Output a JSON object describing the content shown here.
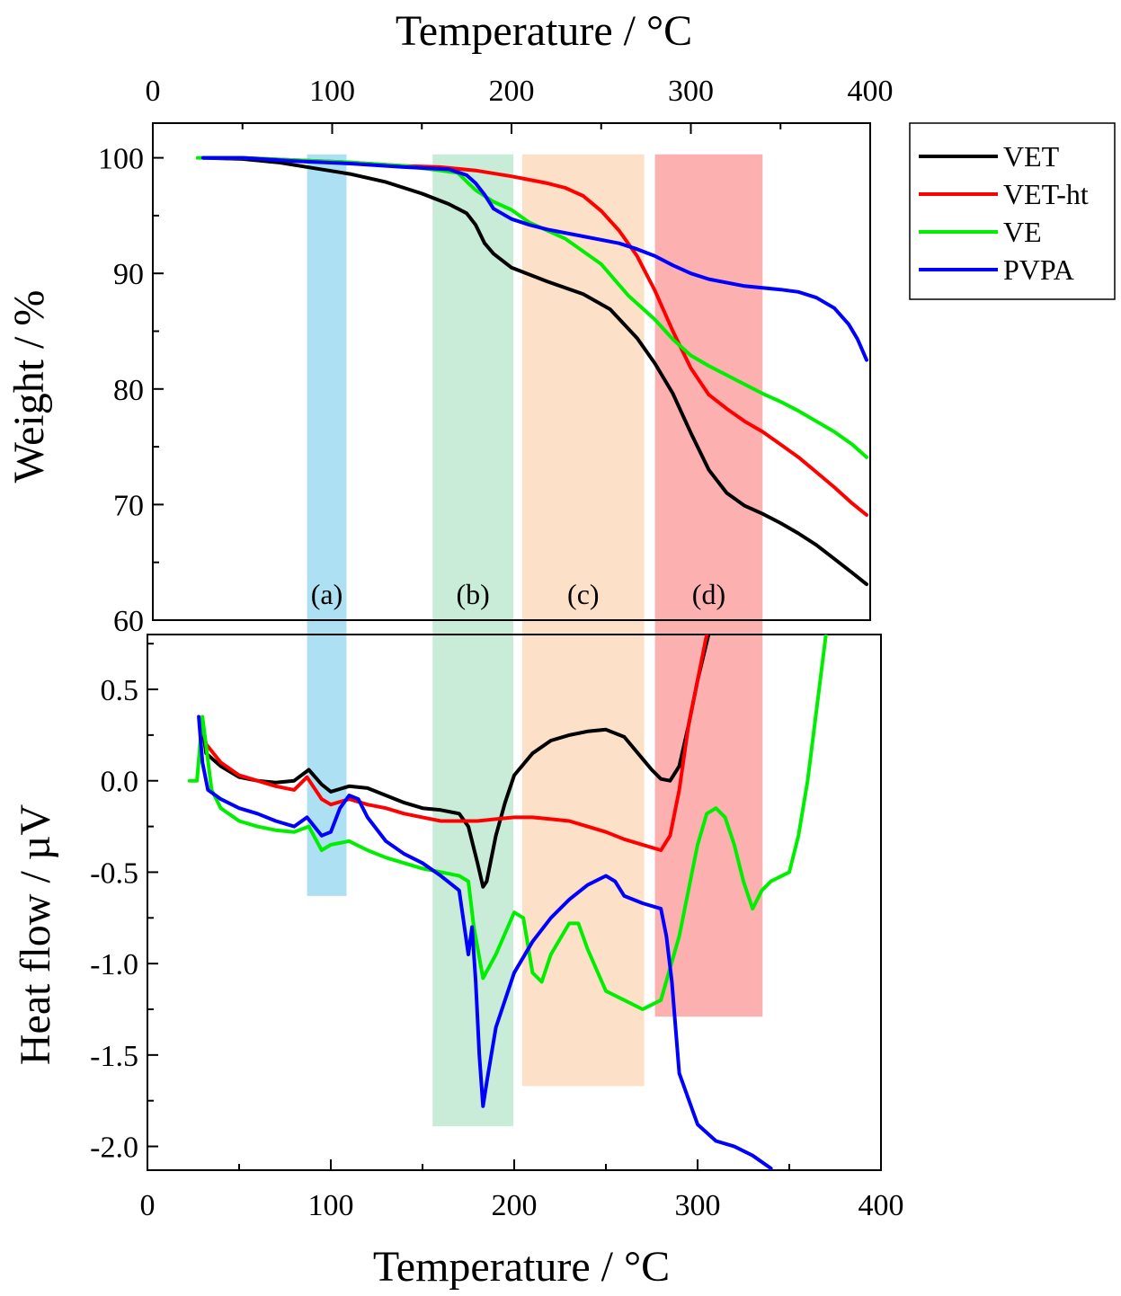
{
  "chart_data": [
    {
      "type": "line",
      "panel": "top",
      "xlabel_top": "Temperature / °C",
      "ylabel": "Weight / %",
      "xlim": [
        0,
        400
      ],
      "ylim": [
        60,
        103
      ],
      "xticks": [
        "0",
        "100",
        "200",
        "300",
        "400"
      ],
      "yticks": [
        "60",
        "70",
        "80",
        "90",
        "100"
      ],
      "grid": false,
      "legend_position": "top-right, outside plot",
      "series": [
        {
          "name": "VET",
          "color": "#000000",
          "x": [
            28,
            50,
            70,
            90,
            110,
            130,
            150,
            165,
            175,
            180,
            185,
            190,
            200,
            220,
            240,
            255,
            270,
            280,
            290,
            300,
            310,
            320,
            330,
            340,
            350,
            360,
            370,
            380,
            390,
            398
          ],
          "y": [
            100,
            99.9,
            99.6,
            99.1,
            98.6,
            97.9,
            96.9,
            96,
            95.2,
            94.2,
            92.6,
            91.7,
            90.5,
            89.3,
            88.2,
            86.9,
            84.4,
            82.2,
            79.6,
            76.2,
            73,
            71,
            69.9,
            69.2,
            68.4,
            67.5,
            66.5,
            65.3,
            64.1,
            63.1
          ]
        },
        {
          "name": "VET-ht",
          "color": "#ff0000",
          "x": [
            28,
            50,
            80,
            110,
            140,
            160,
            180,
            200,
            220,
            230,
            240,
            250,
            260,
            270,
            280,
            290,
            300,
            310,
            320,
            330,
            340,
            350,
            360,
            370,
            380,
            390,
            398
          ],
          "y": [
            100,
            100,
            99.8,
            99.6,
            99.3,
            99.2,
            98.9,
            98.4,
            97.8,
            97.4,
            96.7,
            95.4,
            93.7,
            91.5,
            88.5,
            85,
            81.8,
            79.5,
            78.3,
            77.2,
            76.3,
            75.2,
            74.1,
            72.8,
            71.5,
            70.1,
            69.1
          ]
        },
        {
          "name": "VE",
          "color": "#00ee00",
          "x": [
            25,
            50,
            80,
            110,
            140,
            160,
            170,
            180,
            190,
            200,
            210,
            230,
            250,
            265,
            280,
            290,
            300,
            310,
            320,
            330,
            340,
            350,
            360,
            370,
            380,
            390,
            398
          ],
          "y": [
            100,
            100,
            99.8,
            99.6,
            99.3,
            98.9,
            98.7,
            97.2,
            96.2,
            95.5,
            94.4,
            93,
            90.8,
            88.1,
            86,
            84.3,
            82.9,
            82,
            81.2,
            80.4,
            79.6,
            78.9,
            78.1,
            77.2,
            76.3,
            75.2,
            74.1
          ]
        },
        {
          "name": "PVPA",
          "color": "#0000ff",
          "x": [
            28,
            50,
            80,
            110,
            140,
            165,
            175,
            180,
            185,
            190,
            200,
            210,
            220,
            240,
            260,
            270,
            280,
            290,
            300,
            310,
            330,
            350,
            360,
            370,
            380,
            388,
            393,
            398
          ],
          "y": [
            100,
            100,
            99.7,
            99.5,
            99.2,
            99,
            98.5,
            97.8,
            96.8,
            95.6,
            94.7,
            94.2,
            93.8,
            93.2,
            92.6,
            92.1,
            91.5,
            90.7,
            90,
            89.5,
            88.9,
            88.6,
            88.4,
            87.9,
            87,
            85.6,
            84.3,
            82.5
          ]
        }
      ]
    },
    {
      "type": "line",
      "panel": "bottom",
      "xlabel": "Temperature / °C",
      "ylabel": "Heat flow / µV",
      "xlim": [
        0,
        400
      ],
      "ylim": [
        -2.13,
        0.8
      ],
      "xticks": [
        "0",
        "100",
        "200",
        "300",
        "400"
      ],
      "yticks": [
        "-2.0",
        "-1.5",
        "-1.0",
        "-0.5",
        "0.0",
        "0.5"
      ],
      "grid": false,
      "series": [
        {
          "name": "VET",
          "color": "#000000",
          "x": [
            30,
            32,
            40,
            50,
            60,
            70,
            80,
            88,
            95,
            100,
            110,
            120,
            130,
            140,
            150,
            160,
            170,
            175,
            180,
            183,
            185,
            190,
            195,
            200,
            210,
            220,
            230,
            240,
            250,
            260,
            270,
            275,
            280,
            285,
            290,
            295,
            300,
            306
          ],
          "y": [
            0.3,
            0.15,
            0.08,
            0.02,
            0,
            -0.01,
            0,
            0.06,
            -0.02,
            -0.06,
            -0.03,
            -0.04,
            -0.08,
            -0.12,
            -0.15,
            -0.16,
            -0.18,
            -0.25,
            -0.45,
            -0.58,
            -0.55,
            -0.3,
            -0.12,
            0.03,
            0.15,
            0.22,
            0.25,
            0.27,
            0.28,
            0.24,
            0.12,
            0.06,
            0.01,
            0,
            0.08,
            0.3,
            0.55,
            0.8
          ]
        },
        {
          "name": "VET-ht",
          "color": "#ff0000",
          "x": [
            30,
            32,
            40,
            50,
            60,
            70,
            80,
            87,
            95,
            100,
            110,
            120,
            130,
            140,
            150,
            160,
            170,
            180,
            190,
            200,
            210,
            220,
            230,
            240,
            250,
            260,
            270,
            280,
            285,
            290,
            295,
            300,
            305
          ],
          "y": [
            0.3,
            0.2,
            0.1,
            0.03,
            0,
            -0.03,
            -0.05,
            0.02,
            -0.1,
            -0.13,
            -0.1,
            -0.13,
            -0.15,
            -0.18,
            -0.2,
            -0.22,
            -0.22,
            -0.22,
            -0.21,
            -0.2,
            -0.2,
            -0.21,
            -0.22,
            -0.25,
            -0.28,
            -0.32,
            -0.35,
            -0.38,
            -0.3,
            -0.05,
            0.3,
            0.55,
            0.8
          ]
        },
        {
          "name": "VE",
          "color": "#00ee00",
          "x": [
            23,
            27,
            30,
            35,
            40,
            50,
            60,
            70,
            80,
            88,
            95,
            100,
            110,
            120,
            130,
            140,
            150,
            160,
            170,
            175,
            178,
            183,
            190,
            200,
            205,
            210,
            215,
            220,
            230,
            235,
            240,
            250,
            260,
            270,
            280,
            290,
            300,
            305,
            310,
            315,
            320,
            325,
            330,
            335,
            340,
            350,
            355,
            360,
            365,
            370
          ],
          "y": [
            0,
            0,
            0.35,
            -0.05,
            -0.15,
            -0.22,
            -0.25,
            -0.27,
            -0.28,
            -0.25,
            -0.38,
            -0.35,
            -0.33,
            -0.38,
            -0.42,
            -0.45,
            -0.48,
            -0.5,
            -0.52,
            -0.55,
            -0.8,
            -1.08,
            -0.95,
            -0.72,
            -0.75,
            -1.05,
            -1.1,
            -0.95,
            -0.78,
            -0.78,
            -0.92,
            -1.15,
            -1.2,
            -1.25,
            -1.2,
            -0.85,
            -0.35,
            -0.18,
            -0.15,
            -0.2,
            -0.35,
            -0.55,
            -0.7,
            -0.6,
            -0.55,
            -0.5,
            -0.3,
            0,
            0.4,
            0.8
          ]
        },
        {
          "name": "PVPA",
          "color": "#0000ff",
          "x": [
            28,
            30,
            33,
            40,
            50,
            60,
            70,
            80,
            87,
            95,
            100,
            105,
            110,
            115,
            120,
            130,
            140,
            150,
            160,
            170,
            175,
            177,
            179,
            181,
            183,
            185,
            190,
            200,
            210,
            220,
            230,
            240,
            250,
            255,
            260,
            270,
            280,
            283,
            286,
            290,
            300,
            310,
            320,
            330,
            340
          ],
          "y": [
            0.35,
            0.1,
            -0.05,
            -0.1,
            -0.15,
            -0.18,
            -0.22,
            -0.25,
            -0.2,
            -0.3,
            -0.28,
            -0.15,
            -0.08,
            -0.1,
            -0.2,
            -0.33,
            -0.4,
            -0.45,
            -0.52,
            -0.6,
            -0.95,
            -0.8,
            -1.1,
            -1.5,
            -1.78,
            -1.65,
            -1.35,
            -1.05,
            -0.88,
            -0.75,
            -0.65,
            -0.57,
            -0.52,
            -0.55,
            -0.63,
            -0.67,
            -0.7,
            -0.85,
            -1.1,
            -1.6,
            -1.88,
            -1.97,
            -2.0,
            -2.05,
            -2.12
          ]
        }
      ]
    }
  ],
  "regions": [
    {
      "label": "(a)",
      "x0": 86,
      "x1": 108,
      "color": "#aee0f3",
      "heat_bottom": -0.63
    },
    {
      "label": "(b)",
      "x0": 156,
      "x1": 201,
      "color": "#c9ecd9",
      "heat_bottom": -1.89
    },
    {
      "label": "(c)",
      "x0": 206,
      "x1": 274,
      "color": "#fde0c8",
      "heat_bottom": -1.67
    },
    {
      "label": "(d)",
      "x0": 280,
      "x1": 340,
      "color": "#fcb0b0",
      "heat_bottom": -1.29
    }
  ]
}
